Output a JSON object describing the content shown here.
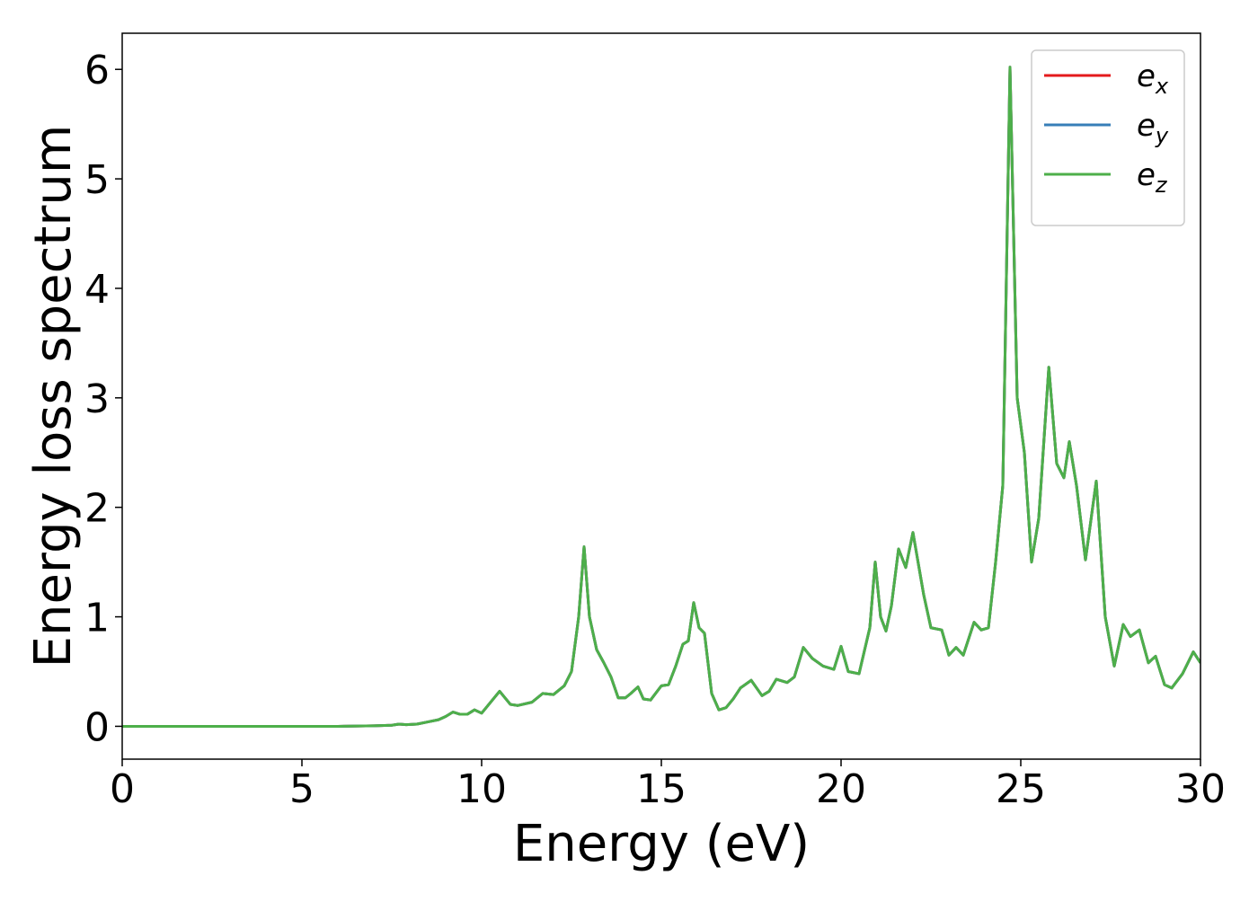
{
  "chart_data": {
    "type": "line",
    "xlabel": "Energy (eV)",
    "ylabel": "Energy loss spectrum",
    "xlim": [
      0,
      30
    ],
    "ylim": [
      -0.3,
      6.33
    ],
    "xticks": [
      0,
      5,
      10,
      15,
      20,
      25,
      30
    ],
    "yticks": [
      0,
      1,
      2,
      3,
      4,
      5,
      6
    ],
    "legend": "upper right",
    "grid": false,
    "x": [
      0,
      1,
      2,
      3,
      4,
      5,
      6,
      7,
      7.5,
      7.7,
      7.9,
      8.2,
      8.5,
      8.8,
      9.0,
      9.2,
      9.4,
      9.6,
      9.8,
      10.0,
      10.2,
      10.5,
      10.8,
      11.0,
      11.4,
      11.7,
      12.0,
      12.3,
      12.5,
      12.7,
      12.85,
      13.0,
      13.2,
      13.4,
      13.6,
      13.8,
      14.0,
      14.15,
      14.35,
      14.5,
      14.7,
      15.0,
      15.2,
      15.4,
      15.6,
      15.75,
      15.9,
      16.05,
      16.2,
      16.4,
      16.6,
      16.8,
      17.0,
      17.2,
      17.5,
      17.8,
      18.0,
      18.2,
      18.5,
      18.7,
      18.95,
      19.2,
      19.5,
      19.8,
      20.0,
      20.2,
      20.5,
      20.8,
      20.95,
      21.1,
      21.25,
      21.4,
      21.6,
      21.8,
      22.0,
      22.3,
      22.5,
      22.8,
      23.0,
      23.2,
      23.4,
      23.7,
      23.9,
      24.1,
      24.3,
      24.5,
      24.7,
      24.9,
      25.1,
      25.3,
      25.5,
      25.78,
      26.0,
      26.2,
      26.35,
      26.55,
      26.8,
      27.1,
      27.35,
      27.6,
      27.85,
      28.05,
      28.3,
      28.55,
      28.75,
      29.0,
      29.2,
      29.5,
      29.8,
      30.0
    ],
    "series": [
      {
        "name": "e_x",
        "color": "#e41a1c",
        "values": [
          0,
          0,
          0,
          0,
          0,
          0,
          0,
          0.005,
          0.01,
          0.02,
          0.015,
          0.02,
          0.04,
          0.06,
          0.09,
          0.13,
          0.11,
          0.11,
          0.15,
          0.12,
          0.2,
          0.32,
          0.2,
          0.19,
          0.22,
          0.3,
          0.29,
          0.37,
          0.5,
          1.0,
          1.64,
          1.0,
          0.7,
          0.58,
          0.45,
          0.26,
          0.26,
          0.3,
          0.36,
          0.25,
          0.24,
          0.37,
          0.38,
          0.55,
          0.75,
          0.78,
          1.13,
          0.9,
          0.85,
          0.3,
          0.15,
          0.17,
          0.25,
          0.35,
          0.42,
          0.28,
          0.32,
          0.43,
          0.4,
          0.45,
          0.72,
          0.62,
          0.55,
          0.52,
          0.73,
          0.5,
          0.48,
          0.9,
          1.5,
          1.0,
          0.87,
          1.1,
          1.62,
          1.45,
          1.77,
          1.2,
          0.9,
          0.88,
          0.65,
          0.72,
          0.65,
          0.95,
          0.88,
          0.9,
          1.5,
          2.2,
          6.02,
          3.0,
          2.5,
          1.5,
          1.9,
          3.28,
          2.4,
          2.27,
          2.6,
          2.2,
          1.52,
          2.24,
          1.0,
          0.55,
          0.93,
          0.82,
          0.88,
          0.58,
          0.64,
          0.38,
          0.35,
          0.48,
          0.68,
          0.58
        ]
      },
      {
        "name": "e_y",
        "color": "#377eb8",
        "values": [
          0,
          0,
          0,
          0,
          0,
          0,
          0,
          0.005,
          0.01,
          0.02,
          0.015,
          0.02,
          0.04,
          0.06,
          0.09,
          0.13,
          0.11,
          0.11,
          0.15,
          0.12,
          0.2,
          0.32,
          0.2,
          0.19,
          0.22,
          0.3,
          0.29,
          0.37,
          0.5,
          1.0,
          1.64,
          1.0,
          0.7,
          0.58,
          0.45,
          0.26,
          0.26,
          0.3,
          0.36,
          0.25,
          0.24,
          0.37,
          0.38,
          0.55,
          0.75,
          0.78,
          1.13,
          0.9,
          0.85,
          0.3,
          0.15,
          0.17,
          0.25,
          0.35,
          0.42,
          0.28,
          0.32,
          0.43,
          0.4,
          0.45,
          0.72,
          0.62,
          0.55,
          0.52,
          0.73,
          0.5,
          0.48,
          0.9,
          1.5,
          1.0,
          0.87,
          1.1,
          1.62,
          1.45,
          1.77,
          1.2,
          0.9,
          0.88,
          0.65,
          0.72,
          0.65,
          0.95,
          0.88,
          0.9,
          1.5,
          2.2,
          6.02,
          3.0,
          2.5,
          1.5,
          1.9,
          3.28,
          2.4,
          2.27,
          2.6,
          2.2,
          1.52,
          2.24,
          1.0,
          0.55,
          0.93,
          0.82,
          0.88,
          0.58,
          0.64,
          0.38,
          0.35,
          0.48,
          0.68,
          0.58
        ]
      },
      {
        "name": "e_z",
        "color": "#4daf4a",
        "values": [
          0,
          0,
          0,
          0,
          0,
          0,
          0,
          0.005,
          0.01,
          0.02,
          0.015,
          0.02,
          0.04,
          0.06,
          0.09,
          0.13,
          0.11,
          0.11,
          0.15,
          0.12,
          0.2,
          0.32,
          0.2,
          0.19,
          0.22,
          0.3,
          0.29,
          0.37,
          0.5,
          1.0,
          1.64,
          1.0,
          0.7,
          0.58,
          0.45,
          0.26,
          0.26,
          0.3,
          0.36,
          0.25,
          0.24,
          0.37,
          0.38,
          0.55,
          0.75,
          0.78,
          1.13,
          0.9,
          0.85,
          0.3,
          0.15,
          0.17,
          0.25,
          0.35,
          0.42,
          0.28,
          0.32,
          0.43,
          0.4,
          0.45,
          0.72,
          0.62,
          0.55,
          0.52,
          0.73,
          0.5,
          0.48,
          0.9,
          1.5,
          1.0,
          0.87,
          1.1,
          1.62,
          1.45,
          1.77,
          1.2,
          0.9,
          0.88,
          0.65,
          0.72,
          0.65,
          0.95,
          0.88,
          0.9,
          1.5,
          2.2,
          6.02,
          3.0,
          2.5,
          1.5,
          1.9,
          3.28,
          2.4,
          2.27,
          2.6,
          2.2,
          1.52,
          2.24,
          1.0,
          0.55,
          0.93,
          0.82,
          0.88,
          0.58,
          0.64,
          0.38,
          0.35,
          0.48,
          0.68,
          0.58
        ]
      }
    ]
  }
}
